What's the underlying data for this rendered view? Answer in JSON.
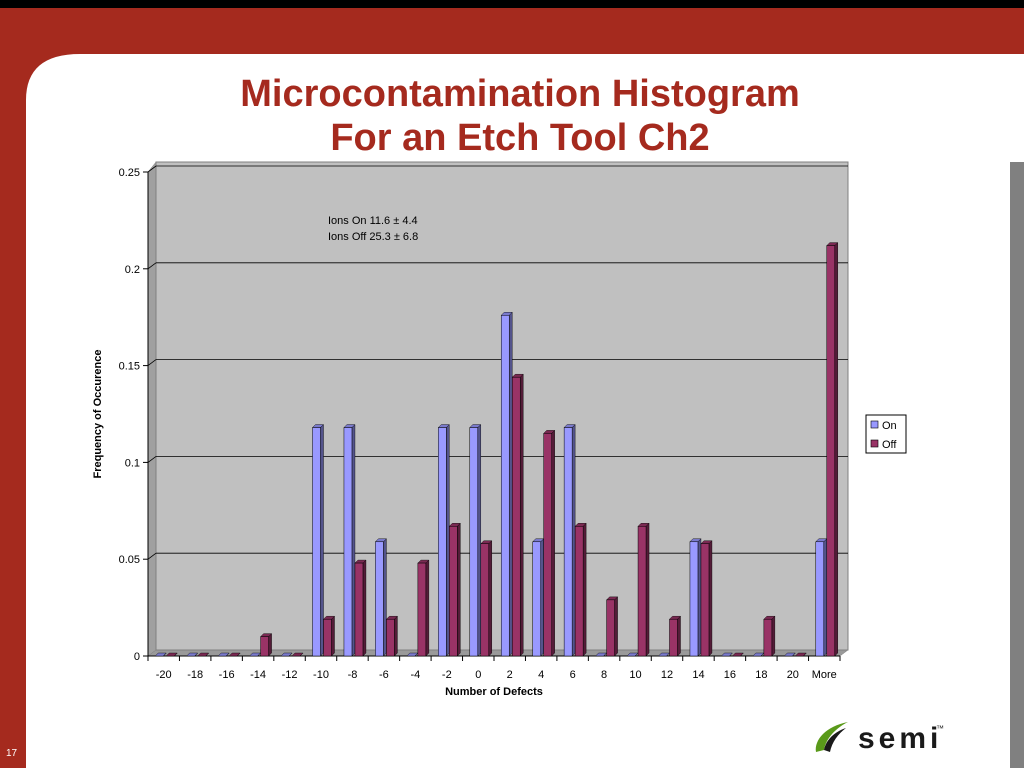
{
  "slide": {
    "title_line1": "Microcontamination Histogram",
    "title_line2": "For an Etch Tool Ch2",
    "page_number": "17",
    "logo_text": "semi",
    "logo_tm": "™",
    "colors": {
      "frame": "#a52a1e",
      "title": "#a52a1e"
    }
  },
  "chart_data": {
    "type": "bar",
    "title": "",
    "xlabel": "Number of Defects",
    "ylabel": "Frequency of Occurence",
    "ylim": [
      0,
      0.25
    ],
    "yticks": [
      "0",
      "0.05",
      "0.1",
      "0.15",
      "0.2",
      "0.25"
    ],
    "categories": [
      "-20",
      "-18",
      "-16",
      "-14",
      "-12",
      "-10",
      "-8",
      "-6",
      "-4",
      "-2",
      "0",
      "2",
      "4",
      "6",
      "8",
      "10",
      "12",
      "14",
      "16",
      "18",
      "20",
      "More"
    ],
    "series": [
      {
        "name": "On",
        "color": "#9999ff",
        "values": [
          0,
          0,
          0,
          0,
          0,
          0.118,
          0.118,
          0.059,
          0,
          0.118,
          0.118,
          0.176,
          0.059,
          0.118,
          0,
          0,
          0,
          0.059,
          0,
          0,
          0,
          0.059
        ]
      },
      {
        "name": "Off",
        "color": "#993366",
        "values": [
          0,
          0,
          0,
          0.01,
          0,
          0.019,
          0.048,
          0.019,
          0.048,
          0.067,
          0.058,
          0.144,
          0.115,
          0.067,
          0.029,
          0.067,
          0.019,
          0.058,
          0,
          0.019,
          0,
          0.212
        ]
      }
    ],
    "annotations": [
      "Ions On 11.6 ± 4.4",
      "Ions Off 25.3 ±  6.8"
    ],
    "grid": true,
    "legend_position": "right",
    "plot_background": "#c0c0c0"
  }
}
